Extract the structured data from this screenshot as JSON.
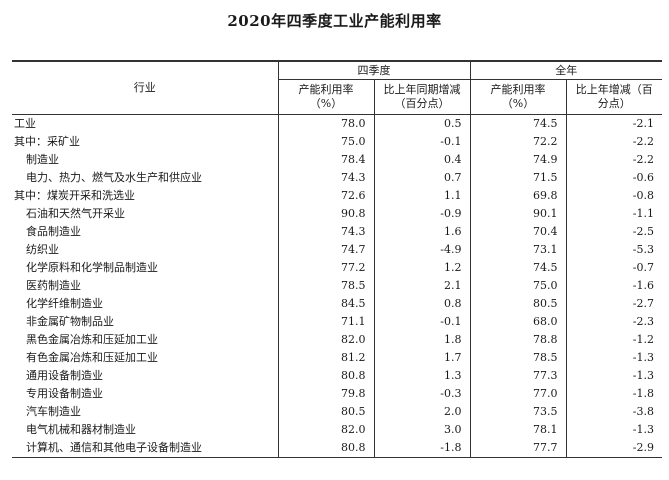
{
  "title": "2020年四季度工业产能利用率",
  "header": {
    "industry": "行业",
    "q4_group": "四季度",
    "year_group": "全年",
    "q4_rate_line1": "产能利用率",
    "q4_rate_line2": "（%）",
    "q4_change_line1": "比上年同期增减",
    "q4_change_line2": "（百分点）",
    "year_rate_line1": "产能利用率",
    "year_rate_line2": "（%）",
    "year_change_line1": "比上年增减（百",
    "year_change_line2": "分点）"
  },
  "rows": [
    {
      "name": "工业",
      "indent": false,
      "q4_rate": "78.0",
      "q4_change": "0.5",
      "year_rate": "74.5",
      "year_change": "-2.1"
    },
    {
      "name": "其中：采矿业",
      "indent": false,
      "q4_rate": "75.0",
      "q4_change": "-0.1",
      "year_rate": "72.2",
      "year_change": "-2.2"
    },
    {
      "name": "制造业",
      "indent": true,
      "q4_rate": "78.4",
      "q4_change": "0.4",
      "year_rate": "74.9",
      "year_change": "-2.2"
    },
    {
      "name": "电力、热力、燃气及水生产和供应业",
      "indent": true,
      "q4_rate": "74.3",
      "q4_change": "0.7",
      "year_rate": "71.5",
      "year_change": "-0.6"
    },
    {
      "name": "其中：煤炭开采和洗选业",
      "indent": false,
      "q4_rate": "72.6",
      "q4_change": "1.1",
      "year_rate": "69.8",
      "year_change": "-0.8"
    },
    {
      "name": "石油和天然气开采业",
      "indent": true,
      "q4_rate": "90.8",
      "q4_change": "-0.9",
      "year_rate": "90.1",
      "year_change": "-1.1"
    },
    {
      "name": "食品制造业",
      "indent": true,
      "q4_rate": "74.3",
      "q4_change": "1.6",
      "year_rate": "70.4",
      "year_change": "-2.5"
    },
    {
      "name": "纺织业",
      "indent": true,
      "q4_rate": "74.7",
      "q4_change": "-4.9",
      "year_rate": "73.1",
      "year_change": "-5.3"
    },
    {
      "name": "化学原料和化学制品制造业",
      "indent": true,
      "q4_rate": "77.2",
      "q4_change": "1.2",
      "year_rate": "74.5",
      "year_change": "-0.7"
    },
    {
      "name": "医药制造业",
      "indent": true,
      "q4_rate": "78.5",
      "q4_change": "2.1",
      "year_rate": "75.0",
      "year_change": "-1.6"
    },
    {
      "name": "化学纤维制造业",
      "indent": true,
      "q4_rate": "84.5",
      "q4_change": "0.8",
      "year_rate": "80.5",
      "year_change": "-2.7"
    },
    {
      "name": "非金属矿物制品业",
      "indent": true,
      "q4_rate": "71.1",
      "q4_change": "-0.1",
      "year_rate": "68.0",
      "year_change": "-2.3"
    },
    {
      "name": "黑色金属冶炼和压延加工业",
      "indent": true,
      "q4_rate": "82.0",
      "q4_change": "1.8",
      "year_rate": "78.8",
      "year_change": "-1.2"
    },
    {
      "name": "有色金属冶炼和压延加工业",
      "indent": true,
      "q4_rate": "81.2",
      "q4_change": "1.7",
      "year_rate": "78.5",
      "year_change": "-1.3"
    },
    {
      "name": "通用设备制造业",
      "indent": true,
      "q4_rate": "80.8",
      "q4_change": "1.3",
      "year_rate": "77.3",
      "year_change": "-1.3"
    },
    {
      "name": "专用设备制造业",
      "indent": true,
      "q4_rate": "79.8",
      "q4_change": "-0.3",
      "year_rate": "77.0",
      "year_change": "-1.8"
    },
    {
      "name": "汽车制造业",
      "indent": true,
      "q4_rate": "80.5",
      "q4_change": "2.0",
      "year_rate": "73.5",
      "year_change": "-3.8"
    },
    {
      "name": "电气机械和器材制造业",
      "indent": true,
      "q4_rate": "82.0",
      "q4_change": "3.0",
      "year_rate": "78.1",
      "year_change": "-1.3"
    },
    {
      "name": "计算机、通信和其他电子设备制造业",
      "indent": true,
      "q4_rate": "80.8",
      "q4_change": "-1.8",
      "year_rate": "77.7",
      "year_change": "-2.9"
    }
  ]
}
